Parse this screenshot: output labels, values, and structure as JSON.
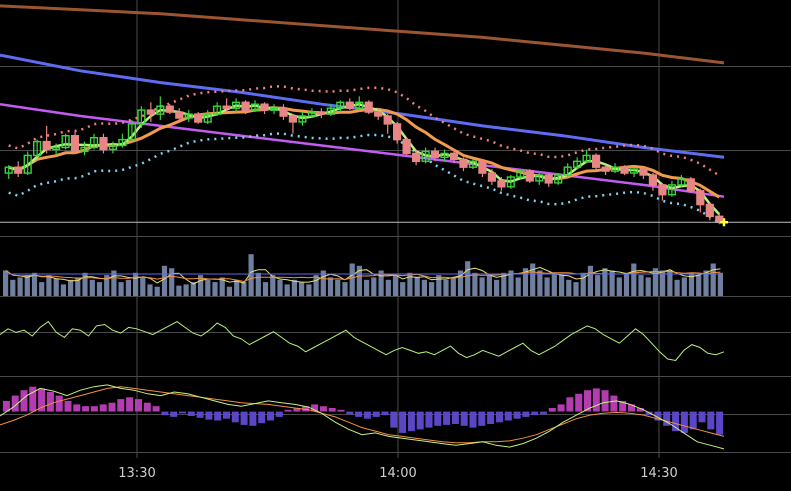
{
  "chart_data": {
    "type": "candlestick-with-indicators",
    "title": "",
    "x_ticks": [
      "13:30",
      "14:00",
      "14:30"
    ],
    "colors": {
      "background": "#000000",
      "grid": "#4a4a4a",
      "candle_up": "#37d63a",
      "candle_down": "#e88585",
      "ma_fast": "#b9f07a",
      "ma_mid": "#f29a4e",
      "ma_slow": "#5e6cf2",
      "ma_violet": "#c35cf2",
      "ma_long": "#9b5530",
      "dots_upper": "#f08080",
      "dots_lower": "#7fd3f0",
      "current_marker": "#ffff33",
      "volume_bar": "#6e7f9f",
      "volume_ma_yellow": "#e6e070",
      "volume_ma_orange": "#f09040",
      "volume_ma_blue": "#5a6af0",
      "oscillator_line": "#b9f07a",
      "macd_pos": "#b23cb0",
      "macd_neg": "#5b46c8",
      "macd_line": "#c8f07a",
      "signal_line": "#f09040"
    },
    "price_gridlines": 4,
    "ma_slow_values": [
      10.0,
      9.2,
      8.6,
      8.1,
      7.5,
      7.0,
      6.4,
      5.9,
      5.3,
      4.8
    ],
    "ma_violet_values": [
      7.5,
      6.9,
      6.4,
      5.9,
      5.4,
      4.9,
      4.4,
      3.9,
      3.4,
      2.8
    ],
    "ma_long_values": [
      12.5,
      12.3,
      12.1,
      11.8,
      11.5,
      11.2,
      10.9,
      10.5,
      10.1,
      9.6
    ],
    "candles": [
      [
        4.0,
        4.3,
        3.7,
        4.4
      ],
      [
        4.3,
        4.0,
        3.8,
        4.6
      ],
      [
        4.0,
        4.9,
        3.9,
        5.1
      ],
      [
        4.9,
        5.6,
        4.8,
        5.7
      ],
      [
        5.6,
        5.2,
        5.0,
        6.4
      ],
      [
        5.2,
        5.3,
        4.9,
        5.5
      ],
      [
        5.3,
        5.9,
        5.2,
        6.0
      ],
      [
        5.9,
        5.1,
        5.0,
        6.1
      ],
      [
        5.1,
        5.3,
        4.9,
        5.6
      ],
      [
        5.3,
        5.8,
        5.2,
        6.0
      ],
      [
        5.8,
        5.2,
        5.0,
        6.0
      ],
      [
        5.2,
        5.4,
        5.0,
        5.6
      ],
      [
        5.4,
        5.7,
        5.3,
        6.0
      ],
      [
        5.7,
        6.5,
        5.6,
        6.7
      ],
      [
        6.5,
        7.2,
        6.3,
        7.4
      ],
      [
        7.2,
        7.0,
        6.6,
        7.6
      ],
      [
        7.0,
        7.4,
        6.7,
        7.9
      ],
      [
        7.4,
        7.1,
        7.0,
        7.5
      ],
      [
        7.1,
        6.8,
        6.7,
        7.3
      ],
      [
        6.8,
        7.0,
        6.6,
        7.2
      ],
      [
        7.0,
        6.6,
        6.5,
        7.1
      ],
      [
        6.6,
        7.0,
        6.5,
        7.2
      ],
      [
        7.0,
        7.4,
        6.9,
        7.6
      ],
      [
        7.4,
        7.3,
        7.1,
        7.8
      ],
      [
        7.3,
        7.6,
        7.1,
        7.8
      ],
      [
        7.6,
        7.2,
        7.0,
        7.7
      ],
      [
        7.2,
        7.5,
        7.1,
        7.7
      ],
      [
        7.5,
        7.2,
        7.0,
        7.6
      ],
      [
        7.2,
        7.3,
        7.0,
        7.5
      ],
      [
        7.3,
        6.9,
        6.7,
        7.5
      ],
      [
        6.9,
        6.6,
        6.0,
        7.0
      ],
      [
        6.6,
        6.9,
        6.4,
        7.1
      ],
      [
        6.9,
        7.1,
        6.8,
        7.3
      ],
      [
        7.1,
        7.0,
        6.8,
        7.3
      ],
      [
        7.0,
        7.3,
        6.9,
        7.5
      ],
      [
        7.3,
        7.6,
        7.1,
        7.7
      ],
      [
        7.6,
        7.3,
        7.2,
        7.8
      ],
      [
        7.3,
        7.6,
        7.2,
        7.9
      ],
      [
        7.6,
        7.1,
        7.0,
        7.7
      ],
      [
        7.1,
        6.9,
        6.7,
        7.3
      ],
      [
        6.9,
        6.5,
        6.0,
        7.0
      ],
      [
        6.5,
        5.7,
        5.5,
        6.6
      ],
      [
        5.7,
        5.0,
        4.9,
        5.8
      ],
      [
        5.0,
        4.6,
        4.4,
        5.2
      ],
      [
        4.6,
        5.1,
        4.5,
        5.3
      ],
      [
        5.1,
        4.8,
        4.6,
        5.3
      ],
      [
        4.8,
        5.0,
        4.6,
        5.2
      ],
      [
        5.0,
        4.7,
        4.5,
        5.2
      ],
      [
        4.7,
        4.3,
        4.1,
        4.8
      ],
      [
        4.3,
        4.6,
        4.2,
        4.7
      ],
      [
        4.6,
        4.0,
        3.8,
        4.7
      ],
      [
        4.0,
        3.6,
        3.4,
        4.2
      ],
      [
        3.6,
        3.3,
        3.1,
        3.8
      ],
      [
        3.3,
        3.8,
        3.2,
        3.9
      ],
      [
        3.8,
        4.1,
        3.7,
        4.2
      ],
      [
        4.1,
        3.6,
        3.5,
        4.2
      ],
      [
        3.6,
        3.9,
        3.4,
        4.0
      ],
      [
        3.9,
        3.5,
        3.3,
        4.0
      ],
      [
        3.5,
        3.9,
        3.4,
        4.0
      ],
      [
        3.9,
        4.3,
        3.8,
        4.5
      ],
      [
        4.3,
        4.6,
        4.2,
        4.8
      ],
      [
        4.6,
        4.9,
        4.5,
        5.2
      ],
      [
        4.9,
        4.3,
        4.2,
        5.0
      ],
      [
        4.3,
        4.1,
        3.9,
        4.4
      ],
      [
        4.1,
        4.3,
        4.0,
        4.5
      ],
      [
        4.3,
        4.0,
        3.9,
        4.4
      ],
      [
        4.0,
        4.2,
        3.8,
        4.3
      ],
      [
        4.2,
        3.9,
        3.7,
        4.3
      ],
      [
        3.9,
        3.4,
        3.1,
        4.0
      ],
      [
        3.4,
        2.9,
        2.6,
        3.5
      ],
      [
        2.9,
        3.4,
        2.8,
        3.6
      ],
      [
        3.4,
        3.7,
        3.3,
        3.9
      ],
      [
        3.7,
        3.1,
        3.0,
        3.8
      ],
      [
        3.1,
        2.4,
        2.0,
        3.2
      ],
      [
        2.4,
        1.8,
        1.6,
        2.5
      ],
      [
        1.8,
        1.5,
        1.4,
        2.0
      ]
    ],
    "price_range": [
      0.8,
      12.8
    ],
    "last_price": 1.5,
    "volume": [
      22,
      14,
      16,
      18,
      20,
      12,
      18,
      15,
      10,
      14,
      16,
      20,
      14,
      12,
      18,
      22,
      12,
      14,
      20,
      16,
      10,
      8,
      26,
      24,
      9,
      10,
      12,
      18,
      14,
      12,
      16,
      8,
      14,
      12,
      36,
      20,
      12,
      18,
      14,
      10,
      14,
      12,
      10,
      18,
      22,
      16,
      14,
      12,
      28,
      26,
      14,
      16,
      22,
      14,
      18,
      12,
      20,
      16,
      14,
      12,
      18,
      14,
      16,
      22,
      30,
      20,
      16,
      18,
      14,
      20,
      22,
      16,
      24,
      28,
      22,
      16,
      20,
      18,
      14,
      12,
      20,
      26,
      18,
      24,
      22,
      16,
      20,
      28,
      18,
      16,
      24,
      22,
      22,
      14,
      16,
      20,
      18,
      22,
      28,
      20
    ],
    "volume_range": [
      0,
      50
    ],
    "oscillator": [
      52,
      60,
      55,
      58,
      50,
      62,
      70,
      55,
      48,
      60,
      58,
      50,
      64,
      66,
      58,
      54,
      62,
      60,
      56,
      52,
      58,
      64,
      70,
      62,
      54,
      50,
      58,
      68,
      62,
      50,
      46,
      38,
      44,
      50,
      56,
      48,
      40,
      36,
      28,
      34,
      40,
      46,
      52,
      58,
      48,
      42,
      36,
      30,
      24,
      30,
      34,
      30,
      26,
      28,
      24,
      30,
      36,
      26,
      20,
      24,
      30,
      26,
      22,
      28,
      34,
      40,
      30,
      24,
      30,
      36,
      44,
      52,
      58,
      64,
      60,
      52,
      46,
      40,
      50,
      60,
      52,
      40,
      28,
      18,
      16,
      30,
      38,
      34,
      26,
      24,
      28
    ],
    "oscillator_range": [
      0,
      100
    ],
    "macd_hist": [
      1.2,
      1.8,
      2.4,
      2.8,
      2.6,
      2.2,
      1.8,
      1.2,
      0.8,
      0.6,
      0.6,
      0.8,
      1.0,
      1.4,
      1.6,
      1.4,
      1.0,
      0.6,
      -0.4,
      -0.6,
      -0.2,
      -0.5,
      -0.7,
      -0.9,
      -1.0,
      -0.8,
      -1.2,
      -1.5,
      -1.6,
      -1.3,
      -1.0,
      -0.6,
      0.2,
      0.4,
      0.6,
      0.8,
      0.6,
      0.4,
      0.2,
      -0.3,
      -0.6,
      -0.8,
      -0.6,
      -0.4,
      -1.8,
      -2.4,
      -2.2,
      -2.0,
      -1.8,
      -1.6,
      -1.5,
      -1.4,
      -1.6,
      -1.8,
      -1.6,
      -1.4,
      -1.2,
      -1.0,
      -0.8,
      -0.6,
      -0.4,
      -0.3,
      0.4,
      0.8,
      1.6,
      2.0,
      2.4,
      2.6,
      2.4,
      1.8,
      1.2,
      0.8,
      0.4,
      -0.4,
      -1.0,
      -1.6,
      -2.2,
      -2.4,
      -2.0,
      -1.2,
      -2.0,
      -2.6
    ],
    "macd_line": [
      -0.5,
      0.5,
      1.8,
      2.6,
      2.3,
      1.8,
      2.4,
      2.8,
      3.0,
      2.6,
      2.4,
      2.0,
      1.8,
      2.2,
      2.0,
      1.6,
      1.2,
      0.8,
      0.6,
      0.9,
      1.2,
      1.0,
      0.8,
      0.5,
      -0.2,
      -1.2,
      -2.0,
      -2.6,
      -2.4,
      -2.8,
      -3.0,
      -3.2,
      -3.4,
      -3.6,
      -3.8,
      -3.6,
      -3.4,
      -3.8,
      -4.0,
      -3.6,
      -3.0,
      -2.2,
      -1.2,
      -0.4,
      0.4,
      1.0,
      1.2,
      0.8,
      0.2,
      -0.6,
      -1.4,
      -2.4,
      -3.4,
      -3.8,
      -4.2
    ],
    "signal_line": [
      -1.5,
      -1.0,
      -0.4,
      0.4,
      1.0,
      1.4,
      1.8,
      2.2,
      2.6,
      2.8,
      2.6,
      2.4,
      2.2,
      2.0,
      1.8,
      1.6,
      1.4,
      1.2,
      1.0,
      0.9,
      0.8,
      0.6,
      0.4,
      0.2,
      -0.2,
      -0.6,
      -1.2,
      -1.8,
      -2.2,
      -2.6,
      -2.8,
      -3.0,
      -3.2,
      -3.4,
      -3.5,
      -3.5,
      -3.4,
      -3.4,
      -3.3,
      -3.0,
      -2.6,
      -2.0,
      -1.4,
      -0.8,
      -0.4,
      -0.2,
      -0.1,
      -0.2,
      -0.4,
      -0.8,
      -1.2,
      -1.6,
      -2.0,
      -2.4,
      -2.8
    ],
    "macd_range": [
      -5,
      4
    ]
  }
}
